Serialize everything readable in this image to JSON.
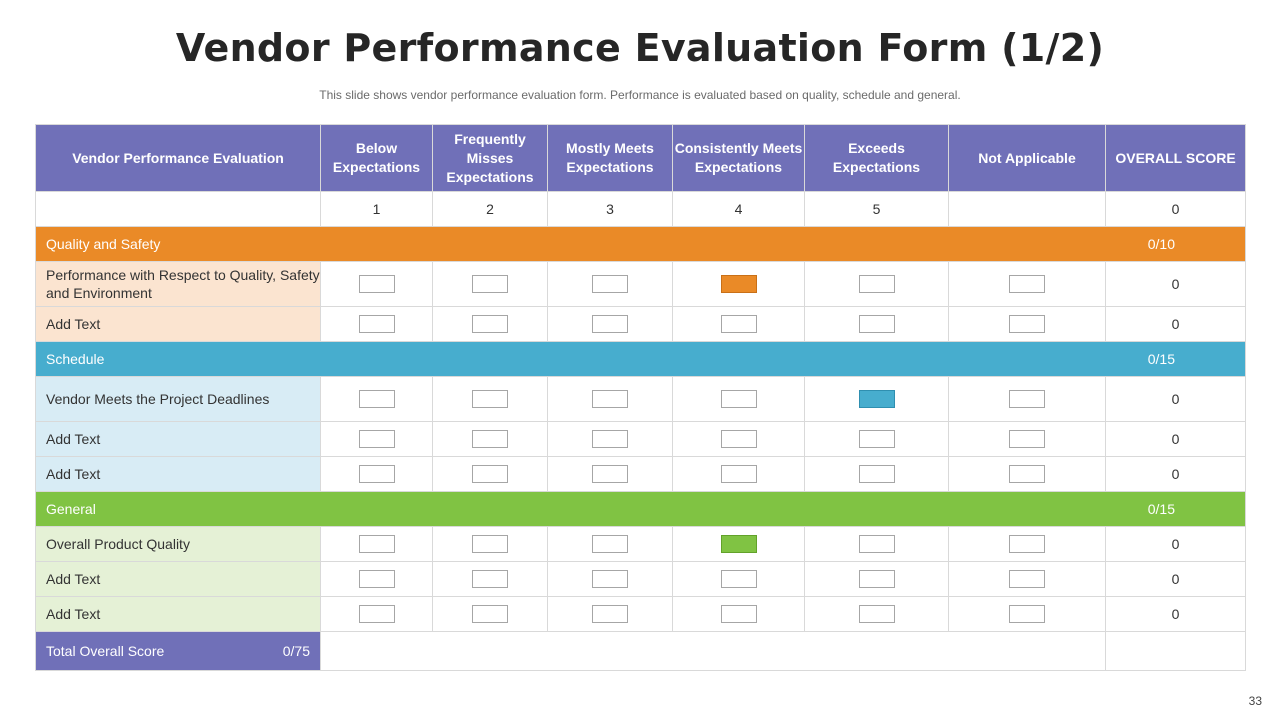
{
  "slide": {
    "title": "Vendor Performance Evaluation Form (1/2)",
    "subtitle": "This slide shows vendor performance  evaluation form. Performance  is evaluated  based on quality, schedule and general.",
    "page_number": "33"
  },
  "table": {
    "headers": [
      "Vendor Performance Evaluation",
      "Below Expectations",
      "Frequently Misses Expectations",
      "Mostly Meets Expectations",
      "Consistently Meets Expectations",
      "Exceeds Expectations",
      "Not Applicable",
      "OVERALL SCORE"
    ],
    "scale": [
      "1",
      "2",
      "3",
      "4",
      "5",
      "",
      "0"
    ],
    "sections": [
      {
        "name": "Quality and Safety",
        "score": "0/10",
        "color": "#ea8a27",
        "rows": [
          {
            "label": "Performance with Respect to Quality, Safety and Environment",
            "selected": 3,
            "score": "0"
          },
          {
            "label": "Add Text",
            "selected": -1,
            "score": "0"
          }
        ]
      },
      {
        "name": "Schedule",
        "score": "0/15",
        "color": "#47adce",
        "rows": [
          {
            "label": "Vendor Meets the Project Deadlines",
            "selected": 4,
            "score": "0"
          },
          {
            "label": "Add Text",
            "selected": -1,
            "score": "0"
          },
          {
            "label": "Add Text",
            "selected": -1,
            "score": "0"
          }
        ]
      },
      {
        "name": "General",
        "score": "0/15",
        "color": "#80c343",
        "rows": [
          {
            "label": "Overall Product Quality",
            "selected": 3,
            "score": "0"
          },
          {
            "label": "Add Text",
            "selected": -1,
            "score": "0"
          },
          {
            "label": "Add Text",
            "selected": -1,
            "score": "0"
          }
        ]
      }
    ],
    "total": {
      "label": "Total Overall Score",
      "score": "0/75"
    }
  }
}
